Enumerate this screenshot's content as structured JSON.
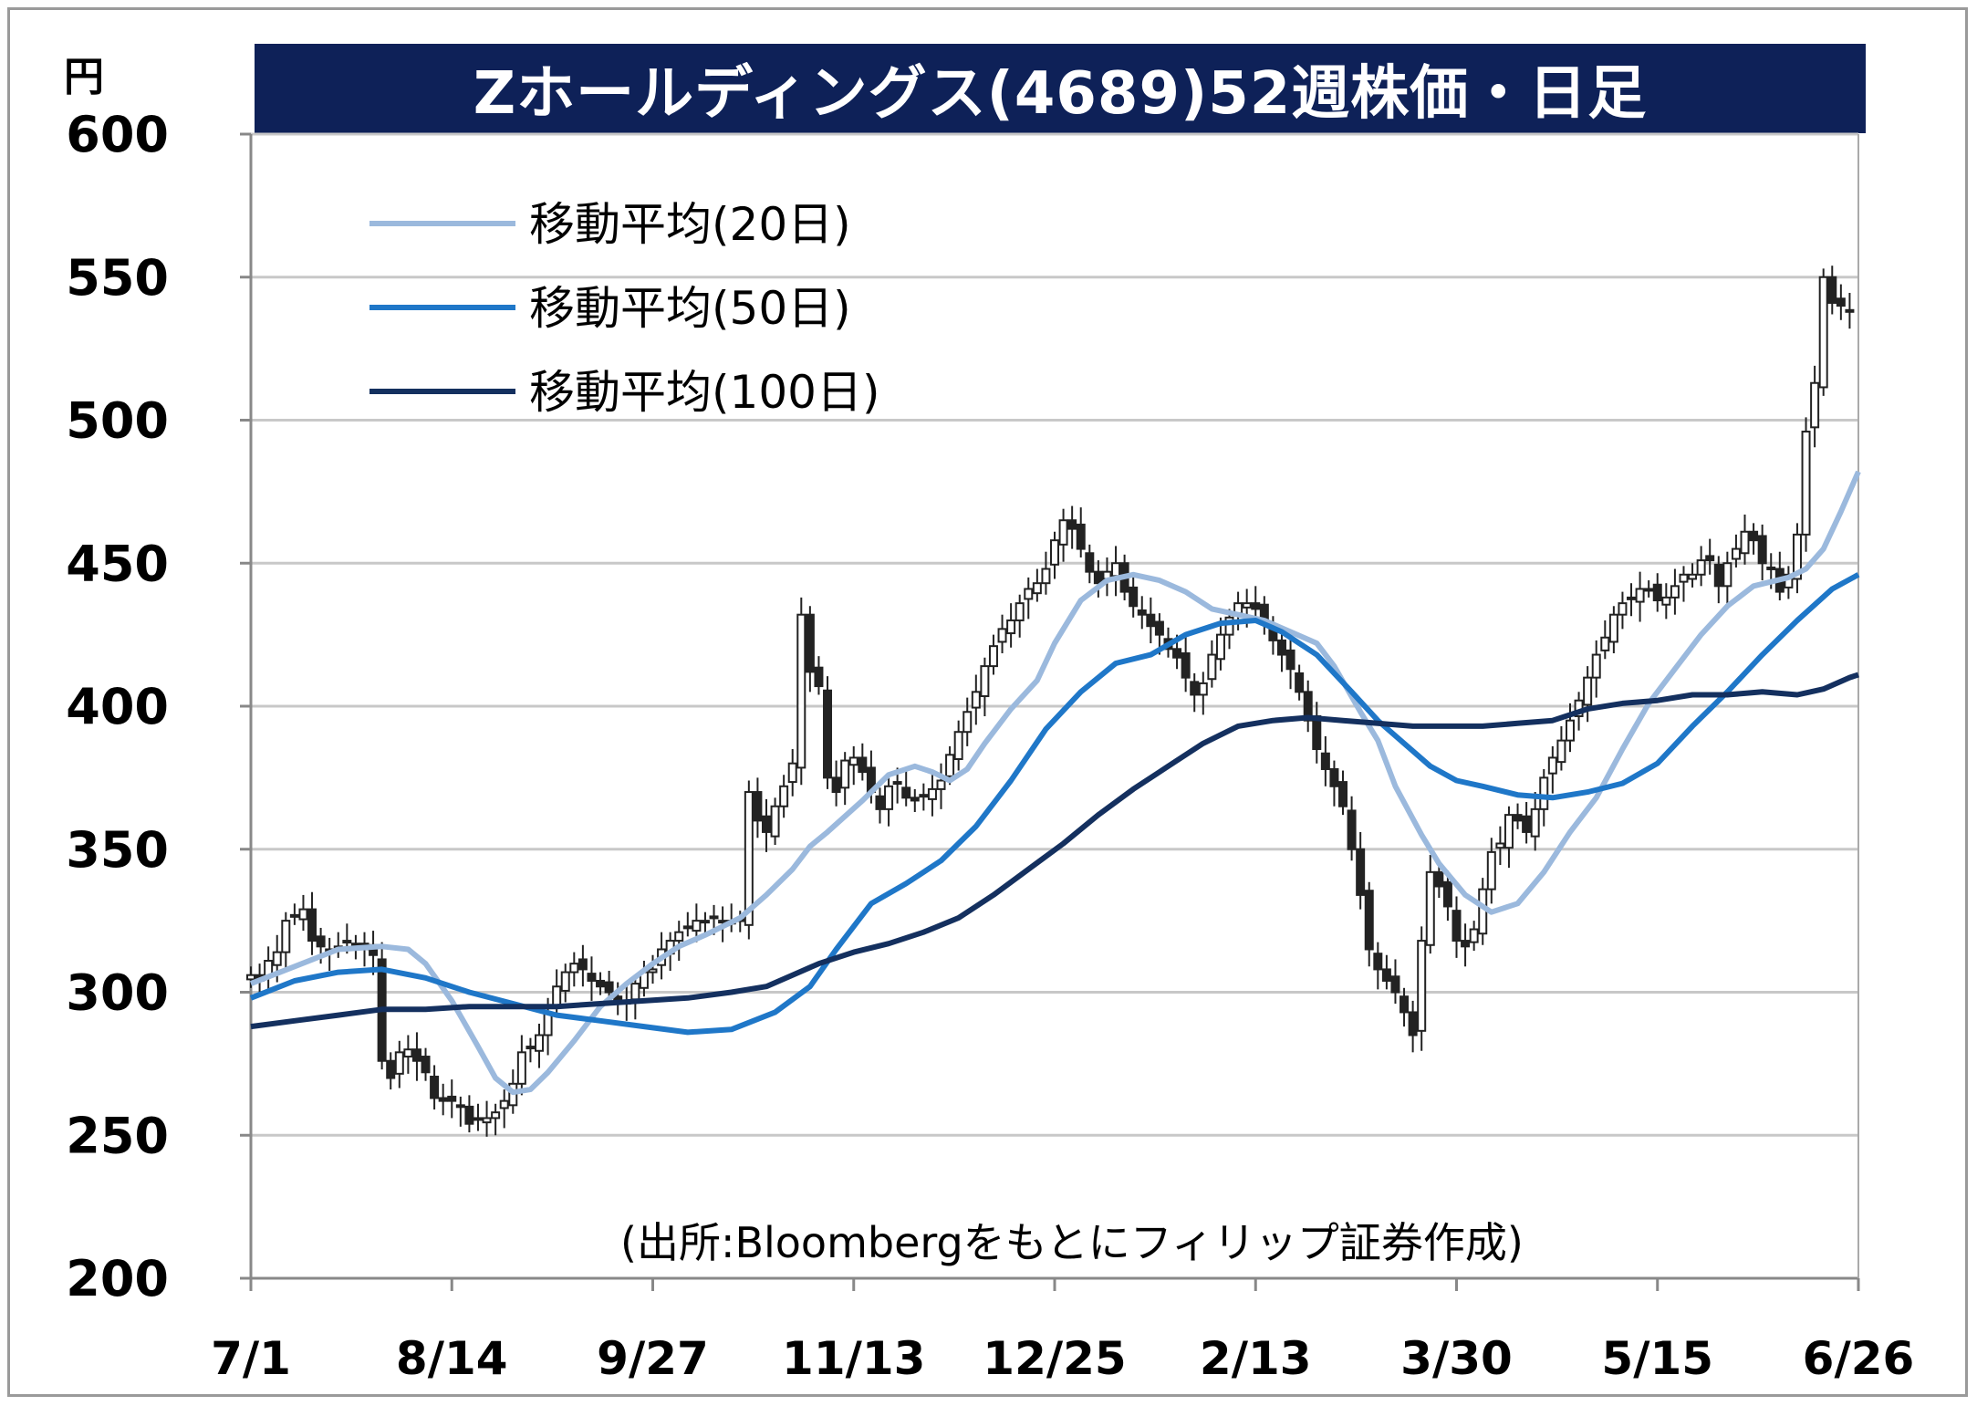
{
  "title": "Zホールディングス(4689)52週株価・日足",
  "unit": "円",
  "source": "(出所:Bloombergをもとにフィリップ証券作成)",
  "colors": {
    "title_bg": "#0e2158",
    "ma20": "#9bb9dd",
    "ma50": "#1f77c8",
    "ma100": "#14305f",
    "grid": "#c8c8c8"
  },
  "chart_data": {
    "type": "line",
    "title": "Zホールディングス(4689)52週株価・日足",
    "ylabel": "円",
    "ylim": [
      200,
      600
    ],
    "yticks": [
      200,
      250,
      300,
      350,
      400,
      450,
      500,
      550,
      600
    ],
    "xticks": [
      "7/1",
      "8/14",
      "9/27",
      "11/13",
      "12/25",
      "2/13",
      "3/30",
      "5/15",
      "6/26"
    ],
    "grid": true,
    "legend_position": "top-left",
    "candles_close": [
      [
        0,
        306
      ],
      [
        2,
        304
      ],
      [
        4,
        311
      ],
      [
        6,
        314
      ],
      [
        8,
        325
      ],
      [
        10,
        327
      ],
      [
        12,
        329
      ],
      [
        14,
        318
      ],
      [
        16,
        316
      ],
      [
        18,
        315
      ],
      [
        20,
        316
      ],
      [
        22,
        318
      ],
      [
        24,
        317
      ],
      [
        26,
        315
      ],
      [
        28,
        313
      ],
      [
        30,
        276
      ],
      [
        32,
        270
      ],
      [
        34,
        279
      ],
      [
        36,
        280
      ],
      [
        38,
        276
      ],
      [
        40,
        272
      ],
      [
        42,
        263
      ],
      [
        44,
        262
      ],
      [
        46,
        262
      ],
      [
        48,
        260
      ],
      [
        50,
        254
      ],
      [
        52,
        256
      ],
      [
        54,
        256
      ],
      [
        56,
        258
      ],
      [
        58,
        262
      ],
      [
        60,
        268
      ],
      [
        62,
        279
      ],
      [
        64,
        281
      ],
      [
        66,
        285
      ],
      [
        68,
        293
      ],
      [
        70,
        302
      ],
      [
        72,
        307
      ],
      [
        74,
        310
      ],
      [
        76,
        308
      ],
      [
        78,
        304
      ],
      [
        80,
        302
      ],
      [
        82,
        300
      ],
      [
        84,
        297
      ],
      [
        86,
        296
      ],
      [
        88,
        303
      ],
      [
        90,
        307
      ],
      [
        92,
        308
      ],
      [
        94,
        315
      ],
      [
        96,
        318
      ],
      [
        98,
        321
      ],
      [
        100,
        323
      ],
      [
        102,
        325
      ],
      [
        104,
        325
      ],
      [
        106,
        326
      ],
      [
        108,
        325
      ],
      [
        110,
        324
      ],
      [
        112,
        325
      ],
      [
        114,
        370
      ],
      [
        116,
        360
      ],
      [
        118,
        356
      ],
      [
        120,
        365
      ],
      [
        122,
        372
      ],
      [
        124,
        380
      ],
      [
        126,
        432
      ],
      [
        128,
        412
      ],
      [
        130,
        407
      ],
      [
        132,
        375
      ],
      [
        134,
        370
      ],
      [
        136,
        381
      ],
      [
        138,
        382
      ],
      [
        140,
        377
      ],
      [
        142,
        370
      ],
      [
        144,
        364
      ],
      [
        146,
        372
      ],
      [
        148,
        373
      ],
      [
        150,
        368
      ],
      [
        152,
        367
      ],
      [
        154,
        369
      ],
      [
        156,
        371
      ],
      [
        158,
        374
      ],
      [
        160,
        383
      ],
      [
        162,
        391
      ],
      [
        164,
        398
      ],
      [
        166,
        405
      ],
      [
        168,
        414
      ],
      [
        170,
        421
      ],
      [
        172,
        427
      ],
      [
        174,
        430
      ],
      [
        176,
        436
      ],
      [
        178,
        441
      ],
      [
        180,
        443
      ],
      [
        182,
        448
      ],
      [
        184,
        458
      ],
      [
        186,
        465
      ],
      [
        188,
        462
      ],
      [
        190,
        455
      ],
      [
        192,
        447
      ],
      [
        194,
        443
      ],
      [
        196,
        447
      ],
      [
        198,
        450
      ],
      [
        200,
        440
      ],
      [
        202,
        435
      ],
      [
        204,
        432
      ],
      [
        206,
        428
      ],
      [
        208,
        425
      ],
      [
        210,
        420
      ],
      [
        212,
        417
      ],
      [
        214,
        410
      ],
      [
        216,
        404
      ],
      [
        218,
        408
      ],
      [
        220,
        418
      ],
      [
        222,
        425
      ],
      [
        224,
        431
      ],
      [
        226,
        436
      ],
      [
        228,
        436
      ],
      [
        230,
        434
      ],
      [
        232,
        429
      ],
      [
        234,
        423
      ],
      [
        236,
        418
      ],
      [
        238,
        413
      ],
      [
        240,
        405
      ],
      [
        242,
        395
      ],
      [
        244,
        385
      ],
      [
        246,
        378
      ],
      [
        248,
        372
      ],
      [
        250,
        365
      ],
      [
        252,
        350
      ],
      [
        254,
        334
      ],
      [
        256,
        315
      ],
      [
        258,
        308
      ],
      [
        260,
        304
      ],
      [
        262,
        300
      ],
      [
        264,
        293
      ],
      [
        266,
        285
      ],
      [
        268,
        318
      ],
      [
        270,
        342
      ],
      [
        272,
        337
      ],
      [
        274,
        330
      ],
      [
        276,
        318
      ],
      [
        278,
        316
      ],
      [
        280,
        322
      ],
      [
        282,
        336
      ],
      [
        284,
        349
      ],
      [
        286,
        352
      ],
      [
        288,
        362
      ],
      [
        290,
        360
      ],
      [
        292,
        356
      ],
      [
        294,
        364
      ],
      [
        296,
        375
      ],
      [
        298,
        382
      ],
      [
        300,
        388
      ],
      [
        302,
        395
      ],
      [
        304,
        402
      ],
      [
        306,
        410
      ],
      [
        308,
        418
      ],
      [
        310,
        424
      ],
      [
        312,
        432
      ],
      [
        314,
        436
      ],
      [
        316,
        438
      ],
      [
        318,
        441
      ],
      [
        320,
        441
      ],
      [
        322,
        437
      ],
      [
        324,
        438
      ],
      [
        326,
        442
      ],
      [
        328,
        446
      ],
      [
        330,
        446
      ],
      [
        332,
        451
      ],
      [
        334,
        451
      ],
      [
        336,
        442
      ],
      [
        338,
        450
      ],
      [
        340,
        455
      ],
      [
        342,
        461
      ],
      [
        344,
        458
      ],
      [
        346,
        450
      ],
      [
        348,
        448
      ],
      [
        350,
        440
      ],
      [
        352,
        446
      ],
      [
        354,
        460
      ],
      [
        356,
        496
      ],
      [
        358,
        513
      ],
      [
        360,
        550
      ],
      [
        362,
        541
      ],
      [
        364,
        540
      ],
      [
        366,
        538
      ]
    ],
    "series": [
      {
        "name": "移動平均(20日)",
        "points": [
          [
            0,
            303
          ],
          [
            10,
            309
          ],
          [
            20,
            315
          ],
          [
            30,
            316
          ],
          [
            36,
            315
          ],
          [
            40,
            310
          ],
          [
            46,
            297
          ],
          [
            52,
            281
          ],
          [
            56,
            270
          ],
          [
            60,
            265
          ],
          [
            64,
            266
          ],
          [
            68,
            272
          ],
          [
            74,
            283
          ],
          [
            80,
            295
          ],
          [
            86,
            303
          ],
          [
            92,
            310
          ],
          [
            98,
            316
          ],
          [
            104,
            320
          ],
          [
            112,
            326
          ],
          [
            118,
            334
          ],
          [
            124,
            343
          ],
          [
            128,
            351
          ],
          [
            132,
            356
          ],
          [
            140,
            367
          ],
          [
            146,
            376
          ],
          [
            152,
            379
          ],
          [
            156,
            377
          ],
          [
            160,
            374
          ],
          [
            164,
            378
          ],
          [
            168,
            387
          ],
          [
            174,
            399
          ],
          [
            180,
            409
          ],
          [
            184,
            422
          ],
          [
            190,
            437
          ],
          [
            196,
            444
          ],
          [
            202,
            446
          ],
          [
            208,
            444
          ],
          [
            214,
            440
          ],
          [
            220,
            434
          ],
          [
            226,
            432
          ],
          [
            232,
            430
          ],
          [
            238,
            426
          ],
          [
            244,
            422
          ],
          [
            248,
            414
          ],
          [
            254,
            398
          ],
          [
            258,
            388
          ],
          [
            262,
            372
          ],
          [
            268,
            355
          ],
          [
            272,
            345
          ],
          [
            278,
            334
          ],
          [
            284,
            328
          ],
          [
            290,
            331
          ],
          [
            296,
            342
          ],
          [
            302,
            356
          ],
          [
            308,
            368
          ],
          [
            314,
            385
          ],
          [
            320,
            401
          ],
          [
            326,
            413
          ],
          [
            332,
            425
          ],
          [
            338,
            435
          ],
          [
            344,
            442
          ],
          [
            352,
            445
          ],
          [
            356,
            448
          ],
          [
            360,
            455
          ],
          [
            364,
            468
          ],
          [
            368,
            482
          ]
        ]
      },
      {
        "name": "移動平均(50日)",
        "points": [
          [
            0,
            298
          ],
          [
            10,
            304
          ],
          [
            20,
            307
          ],
          [
            30,
            308
          ],
          [
            40,
            305
          ],
          [
            50,
            300
          ],
          [
            60,
            296
          ],
          [
            70,
            292
          ],
          [
            80,
            290
          ],
          [
            90,
            288
          ],
          [
            100,
            286
          ],
          [
            110,
            287
          ],
          [
            120,
            293
          ],
          [
            128,
            302
          ],
          [
            134,
            315
          ],
          [
            142,
            331
          ],
          [
            150,
            338
          ],
          [
            158,
            346
          ],
          [
            166,
            358
          ],
          [
            174,
            374
          ],
          [
            182,
            392
          ],
          [
            190,
            405
          ],
          [
            198,
            415
          ],
          [
            206,
            418
          ],
          [
            214,
            425
          ],
          [
            222,
            429
          ],
          [
            230,
            430
          ],
          [
            236,
            426
          ],
          [
            244,
            418
          ],
          [
            252,
            405
          ],
          [
            258,
            395
          ],
          [
            264,
            387
          ],
          [
            270,
            379
          ],
          [
            276,
            374
          ],
          [
            282,
            372
          ],
          [
            290,
            369
          ],
          [
            298,
            368
          ],
          [
            306,
            370
          ],
          [
            314,
            373
          ],
          [
            322,
            380
          ],
          [
            330,
            393
          ],
          [
            338,
            405
          ],
          [
            346,
            418
          ],
          [
            354,
            430
          ],
          [
            362,
            441
          ],
          [
            368,
            446
          ]
        ]
      },
      {
        "name": "移動平均(100日)",
        "points": [
          [
            0,
            288
          ],
          [
            10,
            290
          ],
          [
            20,
            292
          ],
          [
            30,
            294
          ],
          [
            40,
            294
          ],
          [
            50,
            295
          ],
          [
            60,
            295
          ],
          [
            70,
            295
          ],
          [
            80,
            296
          ],
          [
            90,
            297
          ],
          [
            100,
            298
          ],
          [
            110,
            300
          ],
          [
            118,
            302
          ],
          [
            124,
            306
          ],
          [
            130,
            310
          ],
          [
            138,
            314
          ],
          [
            146,
            317
          ],
          [
            154,
            321
          ],
          [
            162,
            326
          ],
          [
            170,
            334
          ],
          [
            178,
            343
          ],
          [
            186,
            352
          ],
          [
            194,
            362
          ],
          [
            202,
            371
          ],
          [
            210,
            379
          ],
          [
            218,
            387
          ],
          [
            226,
            393
          ],
          [
            234,
            395
          ],
          [
            242,
            396
          ],
          [
            250,
            395
          ],
          [
            258,
            394
          ],
          [
            266,
            393
          ],
          [
            274,
            393
          ],
          [
            282,
            393
          ],
          [
            290,
            394
          ],
          [
            298,
            395
          ],
          [
            306,
            399
          ],
          [
            314,
            401
          ],
          [
            322,
            402
          ],
          [
            330,
            404
          ],
          [
            338,
            404
          ],
          [
            346,
            405
          ],
          [
            354,
            404
          ],
          [
            360,
            406
          ],
          [
            366,
            410
          ],
          [
            368,
            411
          ]
        ]
      }
    ]
  }
}
